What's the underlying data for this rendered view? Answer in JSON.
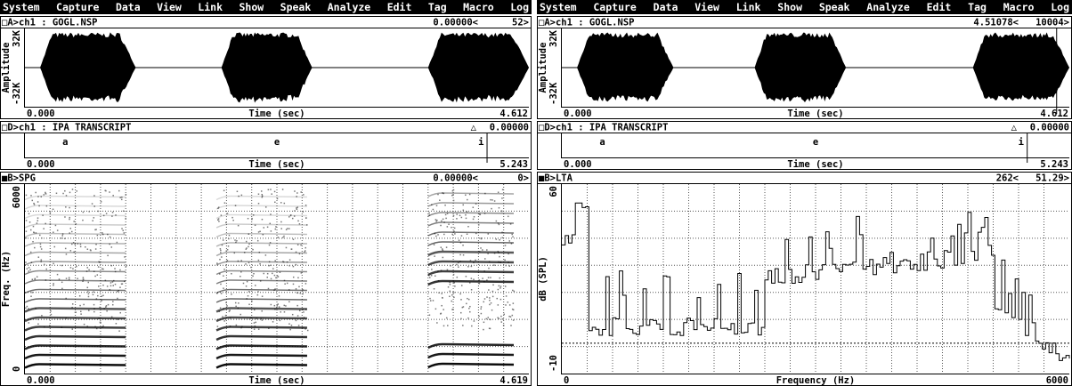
{
  "panels": [
    {
      "menu": [
        "System",
        "Capture",
        "Data",
        "View",
        "Link",
        "Show",
        "Speak",
        "Analyze",
        "Edit",
        "Tag",
        "Macro",
        "Log"
      ],
      "waveform": {
        "title": "□A>ch1 : GOGL.NSP",
        "cursor": "0.00000<",
        "position": "52>",
        "y_top": "32K",
        "y_bottom": "-32K",
        "y_title": "Amplitude",
        "x_start": "0.000",
        "x_title": "Time (sec)",
        "x_end": "4.612"
      },
      "transcript": {
        "title": "□D>ch1 : IPA TRANSCRIPT",
        "marker": "△",
        "cursor": "0.00000",
        "symbols": [
          "a",
          "e",
          "i"
        ],
        "x_start": "0.000",
        "x_title": "Time (sec)",
        "x_end": "5.243"
      },
      "analysis": {
        "title": "■B>SPG",
        "cursor": "0.00000<",
        "position": "0>",
        "y_top": "6000",
        "y_bottom": "0",
        "y_title": "Freq. (Hz)",
        "x_start": "0.000",
        "x_title": "Time (sec)",
        "x_end": "4.619"
      }
    },
    {
      "menu": [
        "System",
        "Capture",
        "Data",
        "View",
        "Link",
        "Show",
        "Speak",
        "Analyze",
        "Edit",
        "Tag",
        "Macro",
        "Log"
      ],
      "waveform": {
        "title": "□A>ch1 : GOGL.NSP",
        "cursor": "4.51078<",
        "position": "10004>",
        "y_top": "32K",
        "y_bottom": "-32K",
        "y_title": "Amplitude",
        "x_start": "0.000",
        "x_title": "Time (sec)",
        "x_end": "4.612"
      },
      "transcript": {
        "title": "□D>ch1 : IPA TRANSCRIPT",
        "marker": "△",
        "cursor": "0.00000",
        "symbols": [
          "a",
          "e",
          "i"
        ],
        "x_start": "0.000",
        "x_title": "Time (sec)",
        "x_end": "5.243"
      },
      "analysis": {
        "title": "■B>LTA",
        "cursor": "262<",
        "position": "51.29>",
        "y_top": "60",
        "y_bottom": "-10",
        "y_title": "dB (SPL)",
        "x_start": "0",
        "x_title": "Frequency (Hz)",
        "x_end": "6000"
      }
    }
  ]
}
